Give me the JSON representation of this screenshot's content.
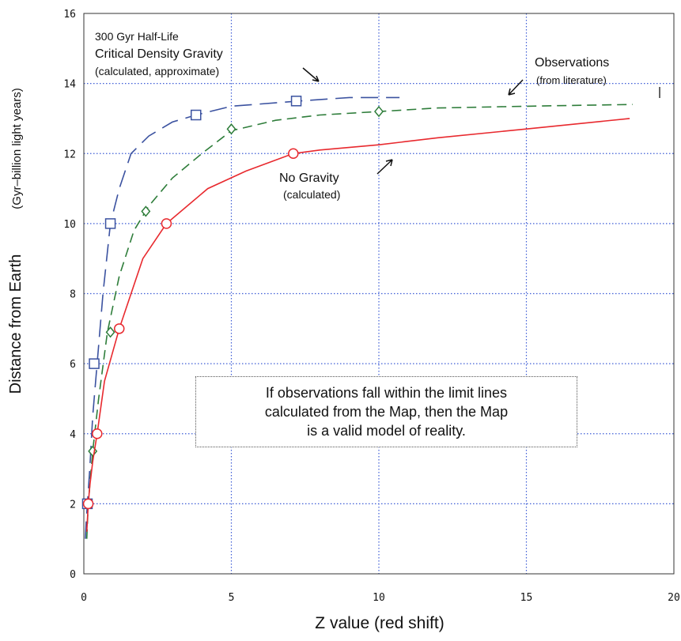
{
  "chart_data": {
    "type": "line",
    "title": "",
    "xlabel": "Z value (red shift)",
    "ylabel": "Distance from Earth",
    "ylabel_units": "(Gyr–billion light years)",
    "xlim": [
      0,
      20
    ],
    "ylim": [
      0,
      16
    ],
    "xticks": [
      0,
      5,
      10,
      15,
      20
    ],
    "yticks": [
      0,
      2,
      4,
      6,
      8,
      10,
      12,
      14,
      16
    ],
    "grid": true,
    "series": [
      {
        "name": "300 Gyr Half-Life Critical Density Gravity",
        "style": "long-dash",
        "color": "#3b52a0",
        "marker": "square",
        "x": [
          0.05,
          0.08,
          0.12,
          0.2,
          0.3,
          0.45,
          0.65,
          0.9,
          1.2,
          1.6,
          2.2,
          3.0,
          3.8,
          5.0,
          7.3,
          9.0,
          10.7
        ],
        "y": [
          1.0,
          1.5,
          2.0,
          3.0,
          4.5,
          6.0,
          8.0,
          10.0,
          11.0,
          12.0,
          12.5,
          12.9,
          13.1,
          13.35,
          13.5,
          13.6,
          13.6
        ],
        "markers_x": [
          0.12,
          0.35,
          0.9,
          3.8,
          7.2
        ],
        "markers_y": [
          2.0,
          6.0,
          10.0,
          13.1,
          13.5
        ]
      },
      {
        "name": "Observations",
        "style": "dash",
        "color": "#2e7d3a",
        "marker": "diamond",
        "x": [
          0.1,
          0.15,
          0.3,
          0.5,
          0.8,
          1.2,
          1.7,
          2.2,
          3.0,
          4.0,
          5.0,
          6.5,
          8.0,
          10.0,
          12.0,
          15.0,
          17.0,
          18.6
        ],
        "y": [
          1.0,
          2.0,
          3.5,
          5.0,
          6.9,
          8.5,
          9.8,
          10.5,
          11.3,
          12.0,
          12.65,
          12.95,
          13.1,
          13.2,
          13.3,
          13.35,
          13.38,
          13.4
        ],
        "markers_x": [
          0.3,
          0.9,
          2.1,
          5.0,
          10.0
        ],
        "markers_y": [
          3.5,
          6.9,
          10.35,
          12.7,
          13.2
        ]
      },
      {
        "name": "No Gravity",
        "style": "solid",
        "color": "#e8292e",
        "marker": "circle",
        "x": [
          0.1,
          0.15,
          0.2,
          0.3,
          0.45,
          0.7,
          1.2,
          2.0,
          2.8,
          4.2,
          5.5,
          7.1,
          8.0,
          10.0,
          12.0,
          15.0,
          18.5
        ],
        "y": [
          1.2,
          2.0,
          2.5,
          3.2,
          4.0,
          5.5,
          7.0,
          9.0,
          10.0,
          11.0,
          11.5,
          12.0,
          12.1,
          12.25,
          12.45,
          12.7,
          13.0
        ],
        "markers_x": [
          0.15,
          0.45,
          1.2,
          2.8,
          7.1
        ],
        "markers_y": [
          2.0,
          4.0,
          7.0,
          10.0,
          12.0
        ]
      }
    ],
    "annotations": {
      "gravity_line1": "300 Gyr Half-Life",
      "gravity_line2": "Critical Density Gravity",
      "gravity_line3": "(calculated, approximate)",
      "obs_line1": "Observations",
      "obs_line2": "(from literature)",
      "nograv_line1": "No Gravity",
      "nograv_line2": "(calculated)"
    },
    "note": [
      "If observations fall within the limit lines",
      "calculated from the Map, then the Map",
      "is a valid model of reality."
    ]
  }
}
